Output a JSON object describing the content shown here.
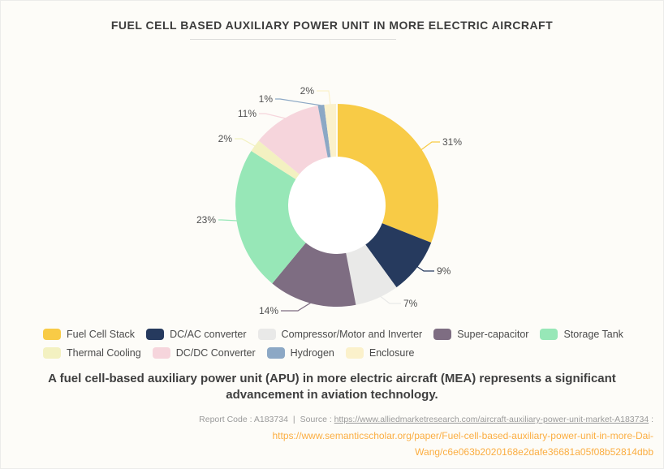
{
  "title": "FUEL CELL BASED AUXILIARY POWER UNIT IN MORE ELECTRIC AIRCRAFT",
  "chart_data": {
    "type": "pie",
    "subtype": "donut",
    "title": "FUEL CELL BASED AUXILIARY POWER UNIT IN MORE ELECTRIC AIRCRAFT",
    "categories": [
      "Fuel Cell Stack",
      "DC/AC converter",
      "Compressor/Motor and Inverter",
      "Super-capacitor",
      "Storage Tank",
      "Thermal Cooling",
      "DC/DC Converter",
      "Hydrogen",
      "Enclosure"
    ],
    "values": [
      31,
      9,
      7,
      14,
      23,
      2,
      11,
      1,
      2
    ],
    "value_labels": [
      "31%",
      "9%",
      "7%",
      "14%",
      "23%",
      "2%",
      "11%",
      "1%",
      "2%"
    ],
    "unit": "%",
    "colors": [
      "#F8CB46",
      "#263A5E",
      "#E9E9E8",
      "#7E6D82",
      "#97E7B7",
      "#F3F1C1",
      "#F6D5DC",
      "#8CA8C5",
      "#FBF1CB"
    ],
    "start_angle_deg": 0,
    "direction": "clockwise",
    "legend_position": "bottom-left",
    "label_position": "outside-with-leader-lines"
  },
  "description": "A fuel cell-based auxiliary power unit (APU) in more electric aircraft (MEA) represents a significant advancement in aviation technology.",
  "footer": {
    "report_code": "Report Code : A183734",
    "separator": "|",
    "source_label": "Source : ",
    "source_url": "https://www.alliedmarketresearch.com/aircraft-auxiliary-power-unit-market-A183734",
    "source_suffix": " :",
    "scholar_url_line1": "https://www.semanticscholar.org/paper/Fuel-cell-based-auxiliary-power-unit-in-more-Dai-",
    "scholar_url_line2": "Wang/c6e063b2020168e2dafe36681a05f08b52814dbb"
  },
  "colors": {
    "background": "#FDFCF8",
    "accent_orange": "#FBAE42",
    "title_text": "#3D3D3D",
    "label_text": "#4F4F4F"
  }
}
